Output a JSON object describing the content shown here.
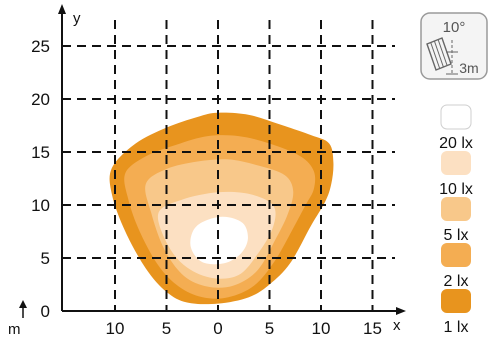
{
  "chart_data": {
    "type": "isolux",
    "xlabel": "m",
    "xlabel_marker": "x",
    "ylabel": "y",
    "ylabel_marker": "m",
    "xlim": [
      -15,
      15
    ],
    "ylim": [
      0,
      25
    ],
    "x_tick_values": [
      -10,
      -5,
      0,
      5,
      10,
      15
    ],
    "x_tick_labels": [
      "10",
      "5",
      "0",
      "5",
      "10",
      "15"
    ],
    "y_ticks": [
      0,
      5,
      10,
      15,
      20,
      25
    ],
    "grid": true,
    "mount": {
      "angle_label": "10°",
      "height_label": "3m"
    },
    "levels": [
      {
        "label": "1 lx",
        "color": "#E8941E",
        "contour": [
          [
            -10.3,
            13.5
          ],
          [
            -8,
            15.8
          ],
          [
            -5,
            17.3
          ],
          [
            -2,
            18.3
          ],
          [
            0,
            18.7
          ],
          [
            3,
            18.5
          ],
          [
            6,
            17.6
          ],
          [
            9,
            16.6
          ],
          [
            10.8,
            15.8
          ],
          [
            11.2,
            14
          ],
          [
            11,
            12
          ],
          [
            10.4,
            10.3
          ],
          [
            9,
            8
          ],
          [
            7,
            4.5
          ],
          [
            5,
            2.5
          ],
          [
            3,
            1.3
          ],
          [
            0,
            0.7
          ],
          [
            -3,
            0.8
          ],
          [
            -5,
            1.8
          ],
          [
            -7,
            4
          ],
          [
            -9,
            7.5
          ],
          [
            -10.3,
            11
          ]
        ]
      },
      {
        "label": "2 lx",
        "color": "#F4AD52",
        "contour": [
          [
            -9,
            13
          ],
          [
            -7,
            14.6
          ],
          [
            -4,
            15.7
          ],
          [
            -1,
            16.5
          ],
          [
            2,
            16.5
          ],
          [
            5,
            15.8
          ],
          [
            8,
            14.6
          ],
          [
            9.3,
            13.2
          ],
          [
            9.3,
            11.5
          ],
          [
            8.5,
            10
          ],
          [
            7.3,
            7.8
          ],
          [
            5.5,
            4.7
          ],
          [
            3.5,
            2.4
          ],
          [
            1,
            1.3
          ],
          [
            -1.5,
            1.3
          ],
          [
            -3.8,
            2.3
          ],
          [
            -5.8,
            4.3
          ],
          [
            -7.6,
            7.5
          ],
          [
            -8.7,
            10.5
          ]
        ]
      },
      {
        "label": "5 lx",
        "color": "#F8C88A",
        "contour": [
          [
            -7,
            12
          ],
          [
            -5,
            13.4
          ],
          [
            -2,
            14.1
          ],
          [
            1,
            14.3
          ],
          [
            4,
            13.7
          ],
          [
            6.5,
            12.8
          ],
          [
            7.3,
            11.3
          ],
          [
            6.8,
            9.2
          ],
          [
            5.5,
            6.6
          ],
          [
            3.8,
            3.8
          ],
          [
            1.5,
            2.4
          ],
          [
            -1,
            2.3
          ],
          [
            -3.3,
            3.3
          ],
          [
            -5.2,
            5.8
          ],
          [
            -6.5,
            9.3
          ]
        ]
      },
      {
        "label": "10 lx",
        "color": "#FCE0C2",
        "contour": [
          [
            -5.8,
            9.2
          ],
          [
            -3.5,
            10.5
          ],
          [
            0,
            11.2
          ],
          [
            3.2,
            11
          ],
          [
            5.4,
            9.9
          ],
          [
            5.3,
            7.8
          ],
          [
            3.8,
            5.3
          ],
          [
            2,
            3.4
          ],
          [
            -0.5,
            3.1
          ],
          [
            -3,
            4.1
          ],
          [
            -4.8,
            6.1
          ]
        ]
      },
      {
        "label": "20 lx",
        "color": "#FFFFFF",
        "contour": [
          [
            -2.5,
            7.4
          ],
          [
            -1.5,
            8.4
          ],
          [
            0.5,
            8.9
          ],
          [
            2.4,
            8.3
          ],
          [
            2.9,
            6.8
          ],
          [
            2.2,
            5.4
          ],
          [
            0.6,
            4.5
          ],
          [
            -1.5,
            4.6
          ],
          [
            -2.6,
            5.9
          ]
        ]
      }
    ],
    "legend_order": [
      "20 lx",
      "10 lx",
      "5 lx",
      "2 lx",
      "1 lx"
    ]
  }
}
